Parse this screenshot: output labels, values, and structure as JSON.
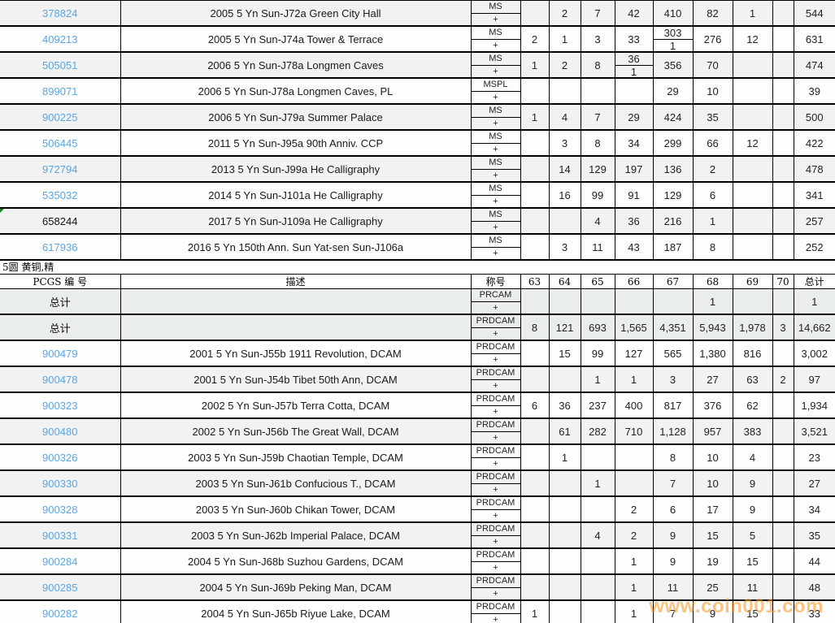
{
  "colors": {
    "link": "#58a6e3",
    "watermark": "#f7941d",
    "totalbg": "#e9edee"
  },
  "columns": [
    "63",
    "64",
    "65",
    "66",
    "67",
    "68",
    "69",
    "70"
  ],
  "header": {
    "id_label": "PCGS 编 号",
    "desc_label": "描述",
    "desig_label": "称号",
    "total_label": "总计"
  },
  "section_title": "5圆 黄铜,精",
  "watermark": "www.coin001.com",
  "top_section": {
    "rows": [
      {
        "id": "378824",
        "link": true,
        "desc": "2005 5 Yn Sun-J72a Green City Hall",
        "desig": [
          "MS",
          "+"
        ],
        "cells": [
          "",
          "2",
          "7",
          "42",
          "410",
          "82",
          "1",
          "",
          "544"
        ]
      },
      {
        "id": "409213",
        "link": true,
        "desc": "2005 5 Yn Sun-J74a Tower & Terrace",
        "desig": [
          "MS",
          "+"
        ],
        "cells": [
          "2",
          "1",
          "3",
          "33",
          {
            "top": "303",
            "bottom": "1"
          },
          "276",
          "12",
          "",
          "631"
        ]
      },
      {
        "id": "505051",
        "link": true,
        "desc": "2006 5 Yn Sun-J78a Longmen Caves",
        "desig": [
          "MS",
          "+"
        ],
        "cells": [
          "1",
          "2",
          "8",
          {
            "top": "36",
            "bottom": "1"
          },
          "356",
          "70",
          "",
          "",
          "474"
        ]
      },
      {
        "id": "899071",
        "link": true,
        "desc": "2006 5 Yn Sun-J78a Longmen Caves, PL",
        "desig": [
          "MSPL",
          "+"
        ],
        "cells": [
          "",
          "",
          "",
          "",
          "29",
          "10",
          "",
          "",
          "39"
        ]
      },
      {
        "id": "900225",
        "link": true,
        "desc": "2006 5 Yn Sun-J79a Summer Palace",
        "desig": [
          "MS",
          "+"
        ],
        "cells": [
          "1",
          "4",
          "7",
          "29",
          "424",
          "35",
          "",
          "",
          "500"
        ]
      },
      {
        "id": "506445",
        "link": true,
        "desc": "2011 5 Yn Sun-J95a 90th Anniv. CCP",
        "desig": [
          "MS",
          "+"
        ],
        "cells": [
          "",
          "3",
          "8",
          "34",
          "299",
          "66",
          "12",
          "",
          "422"
        ]
      },
      {
        "id": "972794",
        "link": true,
        "desc": "2013 5 Yn Sun-J99a He Calligraphy",
        "desig": [
          "MS",
          "+"
        ],
        "cells": [
          "",
          "14",
          "129",
          "197",
          "136",
          "2",
          "",
          "",
          "478"
        ]
      },
      {
        "id": "535032",
        "link": true,
        "desc": "2014 5 Yn Sun-J101a He Calligraphy",
        "desig": [
          "MS",
          "+"
        ],
        "cells": [
          "",
          "16",
          "99",
          "91",
          "129",
          "6",
          "",
          "",
          "341"
        ]
      },
      {
        "id": "658244",
        "link": false,
        "marker": true,
        "desc": "2017 5 Yn Sun-J109a He Calligraphy",
        "desig": [
          "MS",
          "+"
        ],
        "cells": [
          "",
          "",
          "4",
          "36",
          "216",
          "1",
          "",
          "",
          "257"
        ]
      },
      {
        "id": "617936",
        "link": true,
        "desc": "2016 5 Yn 150th Ann. Sun Yat-sen Sun-J106a",
        "desig": [
          "MS",
          "+"
        ],
        "cells": [
          "",
          "3",
          "11",
          "43",
          "187",
          "8",
          "",
          "",
          "252"
        ]
      }
    ]
  },
  "bottom_section": {
    "rows": [
      {
        "id": "总计",
        "link": false,
        "total_row": true,
        "desc": "",
        "desig": [
          "PRCAM",
          "+"
        ],
        "cells": [
          "",
          "",
          "",
          "",
          "",
          "1",
          "",
          "",
          "1"
        ]
      },
      {
        "id": "总计",
        "link": false,
        "total_row": true,
        "desc": "",
        "desig": [
          "PRDCAM",
          "+"
        ],
        "cells": [
          "8",
          "121",
          "693",
          "1,565",
          "4,351",
          "5,943",
          "1,978",
          "3",
          "14,662"
        ]
      },
      {
        "id": "900479",
        "link": true,
        "desc": "2001 5 Yn Sun-J55b 1911 Revolution, DCAM",
        "desig": [
          "PRDCAM",
          "+"
        ],
        "cells": [
          "",
          "15",
          "99",
          "127",
          "565",
          "1,380",
          "816",
          "",
          "3,002"
        ]
      },
      {
        "id": "900478",
        "link": true,
        "desc": "2001 5 Yn Sun-J54b Tibet 50th Ann, DCAM",
        "desig": [
          "PRDCAM",
          "+"
        ],
        "cells": [
          "",
          "",
          "1",
          "1",
          "3",
          "27",
          "63",
          "2",
          "97"
        ]
      },
      {
        "id": "900323",
        "link": true,
        "desc": "2002 5 Yn Sun-J57b Terra Cotta, DCAM",
        "desig": [
          "PRDCAM",
          "+"
        ],
        "cells": [
          "6",
          "36",
          "237",
          "400",
          "817",
          "376",
          "62",
          "",
          "1,934"
        ]
      },
      {
        "id": "900480",
        "link": true,
        "desc": "2002 5 Yn Sun-J56b The Great Wall, DCAM",
        "desig": [
          "PRDCAM",
          "+"
        ],
        "cells": [
          "",
          "61",
          "282",
          "710",
          "1,128",
          "957",
          "383",
          "",
          "3,521"
        ]
      },
      {
        "id": "900326",
        "link": true,
        "desc": "2003 5 Yn Sun-J59b Chaotian Temple, DCAM",
        "desig": [
          "PRDCAM",
          "+"
        ],
        "cells": [
          "",
          "1",
          "",
          "",
          "8",
          "10",
          "4",
          "",
          "23"
        ]
      },
      {
        "id": "900330",
        "link": true,
        "desc": "2003 5 Yn Sun-J61b Confucious T., DCAM",
        "desig": [
          "PRDCAM",
          "+"
        ],
        "cells": [
          "",
          "",
          "1",
          "",
          "7",
          "10",
          "9",
          "",
          "27"
        ]
      },
      {
        "id": "900328",
        "link": true,
        "desc": "2003 5 Yn Sun-J60b Chikan Tower, DCAM",
        "desig": [
          "PRDCAM",
          "+"
        ],
        "cells": [
          "",
          "",
          "",
          "2",
          "6",
          "17",
          "9",
          "",
          "34"
        ]
      },
      {
        "id": "900331",
        "link": true,
        "desc": "2003 5 Yn Sun-J62b Imperial Palace, DCAM",
        "desig": [
          "PRDCAM",
          "+"
        ],
        "cells": [
          "",
          "",
          "4",
          "2",
          "9",
          "15",
          "5",
          "",
          "35"
        ]
      },
      {
        "id": "900284",
        "link": true,
        "desc": "2004 5 Yn Sun-J68b Suzhou Gardens, DCAM",
        "desig": [
          "PRDCAM",
          "+"
        ],
        "cells": [
          "",
          "",
          "",
          "1",
          "9",
          "19",
          "15",
          "",
          "44"
        ]
      },
      {
        "id": "900285",
        "link": true,
        "desc": "2004 5 Yn Sun-J69b Peking Man, DCAM",
        "desig": [
          "PRDCAM",
          "+"
        ],
        "cells": [
          "",
          "",
          "",
          "1",
          "11",
          "25",
          "11",
          "",
          "48"
        ]
      },
      {
        "id": "900282",
        "link": true,
        "desc": "2004 5 Yn Sun-J65b Riyue Lake, DCAM",
        "desig": [
          "PRDCAM",
          "+"
        ],
        "cells": [
          "1",
          "",
          "",
          "1",
          "7",
          "9",
          "15",
          "",
          "33"
        ]
      }
    ]
  }
}
